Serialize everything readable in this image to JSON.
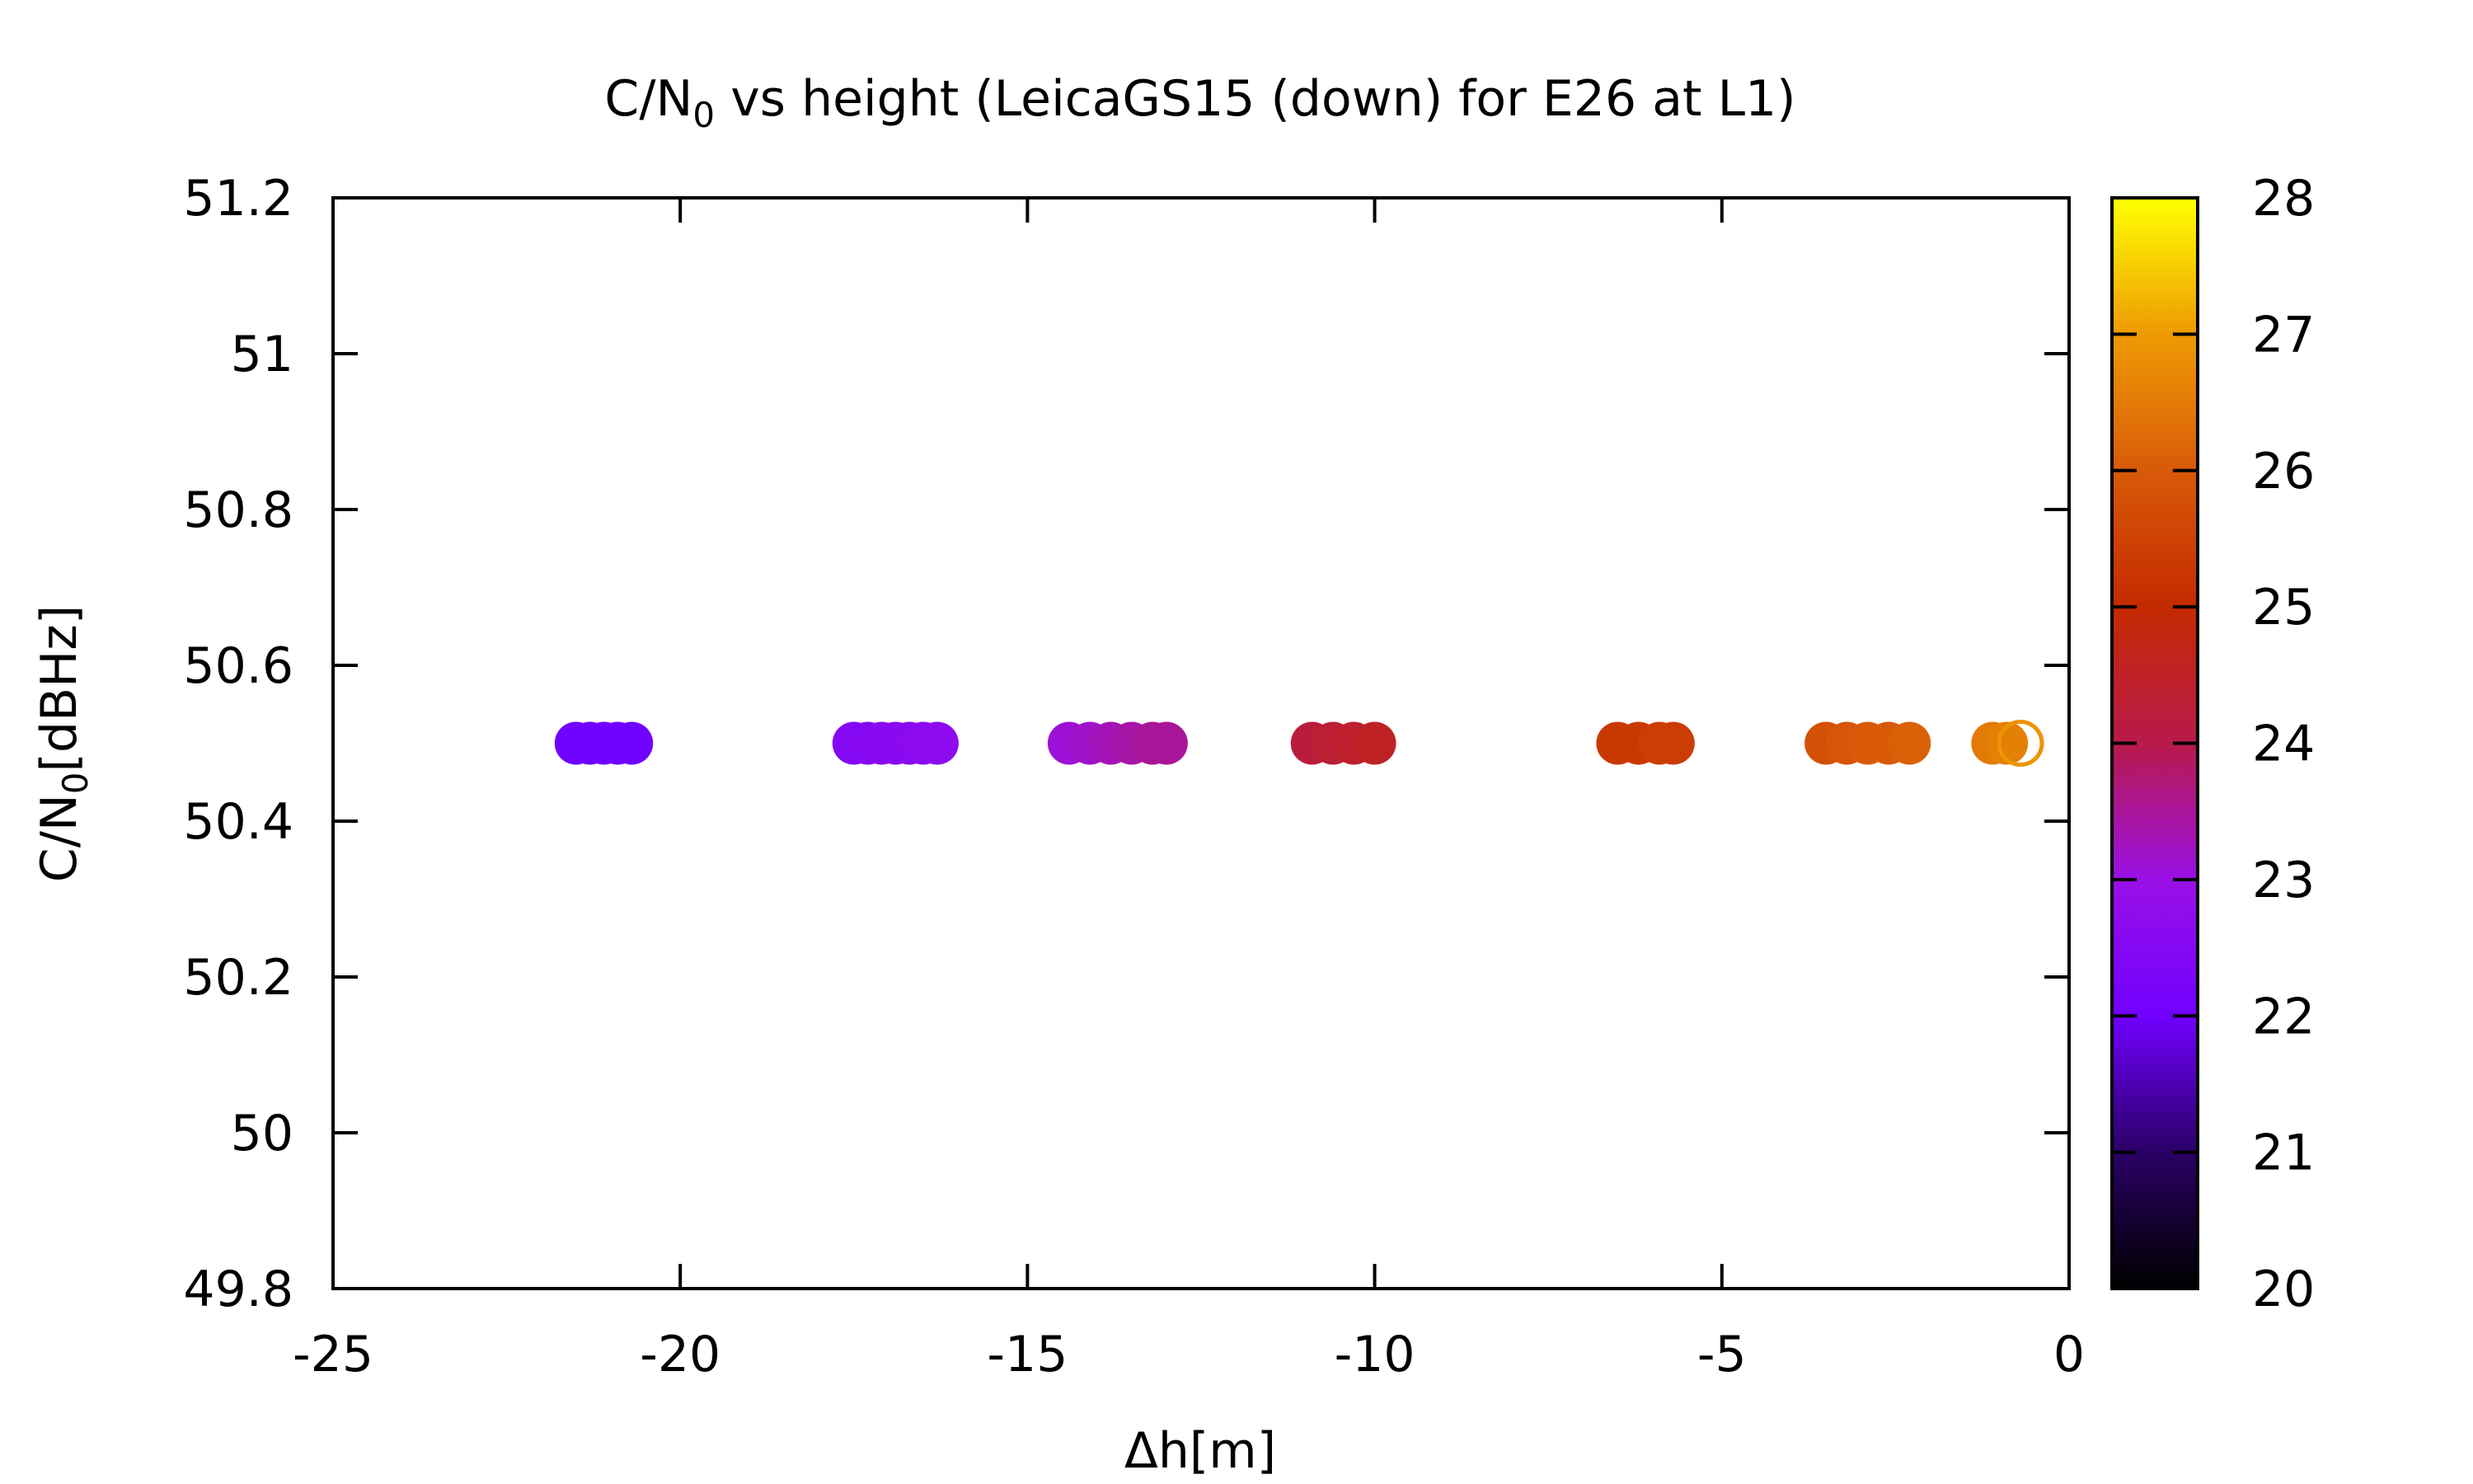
{
  "chart_data": {
    "type": "scatter",
    "title": "C/N",
    "title_subscript": "0",
    "title_rest": " vs height (LeicaGS15 (down) for E26 at L1)",
    "xlabel": "Δh[m]",
    "ylabel": "C/N",
    "ylabel_subscript": "0",
    "ylabel_rest": "[dBHz]",
    "xlim": [
      -25,
      0
    ],
    "ylim": [
      49.8,
      51.2
    ],
    "x_ticks": [
      -25,
      -20,
      -15,
      -10,
      -5,
      0
    ],
    "x_tick_labels": [
      "-25",
      "-20",
      "-15",
      "-10",
      "-5",
      "0"
    ],
    "y_ticks": [
      49.8,
      50,
      50.2,
      50.4,
      50.6,
      50.8,
      51,
      51.2
    ],
    "y_tick_labels": [
      "49.8",
      "50",
      "50.2",
      "50.4",
      "50.6",
      "50.8",
      "51",
      "51.2"
    ],
    "colorbar": {
      "range": [
        20,
        28
      ],
      "ticks": [
        20,
        21,
        22,
        23,
        24,
        25,
        26,
        27,
        28
      ],
      "tick_labels": [
        "20",
        "21",
        "22",
        "23",
        "24",
        "25",
        "26",
        "27",
        "28"
      ],
      "palette": "black-blue-purple-red-orange-yellow"
    },
    "grid": false,
    "points": [
      {
        "x": -21.5,
        "y": 50.5,
        "c": 22.0
      },
      {
        "x": -21.3,
        "y": 50.5,
        "c": 22.0
      },
      {
        "x": -21.1,
        "y": 50.5,
        "c": 22.0
      },
      {
        "x": -20.9,
        "y": 50.5,
        "c": 22.0
      },
      {
        "x": -20.7,
        "y": 50.5,
        "c": 22.0
      },
      {
        "x": -17.5,
        "y": 50.5,
        "c": 22.5
      },
      {
        "x": -17.3,
        "y": 50.5,
        "c": 22.5
      },
      {
        "x": -17.1,
        "y": 50.5,
        "c": 22.6
      },
      {
        "x": -16.9,
        "y": 50.5,
        "c": 22.6
      },
      {
        "x": -16.7,
        "y": 50.5,
        "c": 22.6
      },
      {
        "x": -16.5,
        "y": 50.5,
        "c": 22.7
      },
      {
        "x": -16.3,
        "y": 50.5,
        "c": 22.7
      },
      {
        "x": -14.4,
        "y": 50.5,
        "c": 23.1
      },
      {
        "x": -14.1,
        "y": 50.5,
        "c": 23.2
      },
      {
        "x": -13.8,
        "y": 50.5,
        "c": 23.3
      },
      {
        "x": -13.5,
        "y": 50.5,
        "c": 23.4
      },
      {
        "x": -13.2,
        "y": 50.5,
        "c": 23.5
      },
      {
        "x": -13.0,
        "y": 50.5,
        "c": 23.5
      },
      {
        "x": -10.9,
        "y": 50.5,
        "c": 24.2
      },
      {
        "x": -10.6,
        "y": 50.5,
        "c": 24.3
      },
      {
        "x": -10.3,
        "y": 50.5,
        "c": 24.4
      },
      {
        "x": -10.0,
        "y": 50.5,
        "c": 24.5
      },
      {
        "x": -6.5,
        "y": 50.5,
        "c": 25.3
      },
      {
        "x": -6.2,
        "y": 50.5,
        "c": 25.3
      },
      {
        "x": -5.9,
        "y": 50.5,
        "c": 25.4
      },
      {
        "x": -5.7,
        "y": 50.5,
        "c": 25.4
      },
      {
        "x": -3.5,
        "y": 50.5,
        "c": 25.8
      },
      {
        "x": -3.2,
        "y": 50.5,
        "c": 25.9
      },
      {
        "x": -2.9,
        "y": 50.5,
        "c": 26.0
      },
      {
        "x": -2.6,
        "y": 50.5,
        "c": 26.0
      },
      {
        "x": -2.3,
        "y": 50.5,
        "c": 26.1
      },
      {
        "x": -1.1,
        "y": 50.5,
        "c": 26.5
      },
      {
        "x": -0.9,
        "y": 50.5,
        "c": 26.6
      },
      {
        "x": -0.7,
        "y": 50.5,
        "c": 26.9,
        "open": true
      }
    ]
  }
}
